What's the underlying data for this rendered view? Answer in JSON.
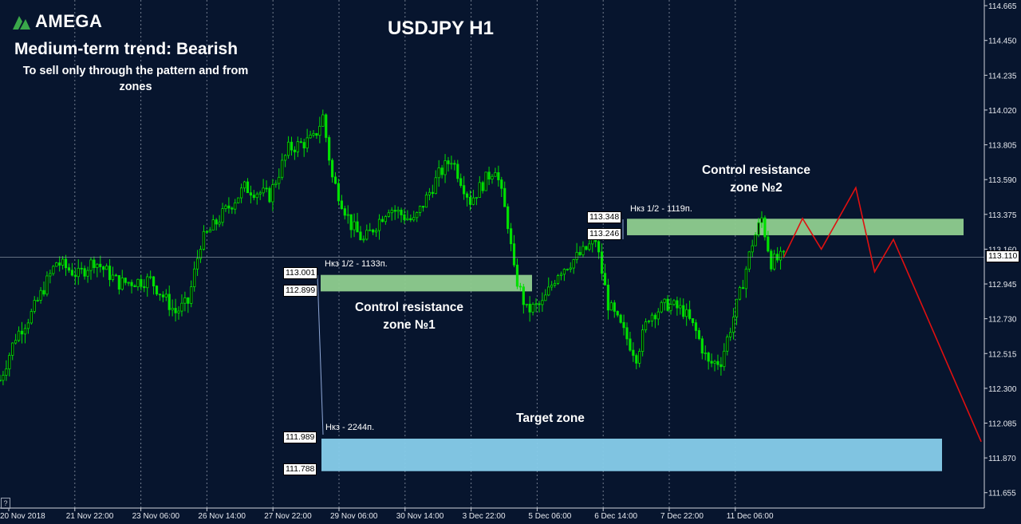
{
  "brand": {
    "name": "AMEGA"
  },
  "header": {
    "trend": "Medium-term trend: Bearish",
    "note": "To sell only through the pattern and from zones",
    "symbol": "USDJPY H1"
  },
  "zones": {
    "zone1": {
      "title_line1": "Control resistance",
      "title_line2": "zone №1",
      "sub": "Нкз 1/2 - 1133п.",
      "upper_label": "113.001",
      "lower_label": "112.899"
    },
    "zone2": {
      "title_line1": "Control resistance",
      "title_line2": "zone №2",
      "sub": "Нкз 1/2 - 1119п.",
      "upper_label": "113.348",
      "lower_label": "113.246"
    },
    "target": {
      "title": "Target zone",
      "sub": "Нкз - 2244п.",
      "upper_label": "111.989",
      "lower_label": "111.788"
    }
  },
  "current_price": {
    "label": "113.110"
  },
  "help_button": "?",
  "colors": {
    "background": "#07152e",
    "bull_candle": "#00e000",
    "resistance_zone": "#8fce8f",
    "target_zone": "#87ceeb",
    "forecast_line": "#e01010",
    "grid": "#b8c0cc"
  },
  "chart_data": {
    "type": "candlestick",
    "title": "USDJPY H1",
    "price_axis": {
      "min": 111.56,
      "max": 114.7,
      "ticks": [
        "114.665",
        "114.450",
        "114.235",
        "114.020",
        "113.805",
        "113.590",
        "113.375",
        "113.160",
        "112.945",
        "112.730",
        "112.515",
        "112.300",
        "112.085",
        "111.870",
        "111.655"
      ]
    },
    "time_axis": {
      "ticks": [
        "20 Nov 2018",
        "21 Nov 22:00",
        "23 Nov 06:00",
        "26 Nov 14:00",
        "27 Nov 22:00",
        "29 Nov 06:00",
        "30 Nov 14:00",
        "3 Dec 22:00",
        "5 Dec 06:00",
        "6 Dec 14:00",
        "7 Dec 22:00",
        "11 Dec 06:00"
      ]
    },
    "price_path": [
      {
        "bar": 0,
        "price": 112.35
      },
      {
        "bar": 5,
        "price": 112.62
      },
      {
        "bar": 10,
        "price": 112.76
      },
      {
        "bar": 18,
        "price": 113.08
      },
      {
        "bar": 25,
        "price": 113.0
      },
      {
        "bar": 30,
        "price": 113.09
      },
      {
        "bar": 38,
        "price": 112.95
      },
      {
        "bar": 48,
        "price": 112.97
      },
      {
        "bar": 56,
        "price": 112.77
      },
      {
        "bar": 60,
        "price": 112.83
      },
      {
        "bar": 64,
        "price": 113.2
      },
      {
        "bar": 70,
        "price": 113.35
      },
      {
        "bar": 78,
        "price": 113.54
      },
      {
        "bar": 86,
        "price": 113.49
      },
      {
        "bar": 92,
        "price": 113.78
      },
      {
        "bar": 100,
        "price": 113.84
      },
      {
        "bar": 103,
        "price": 113.98
      },
      {
        "bar": 106,
        "price": 113.6
      },
      {
        "bar": 112,
        "price": 113.31
      },
      {
        "bar": 116,
        "price": 113.21
      },
      {
        "bar": 124,
        "price": 113.42
      },
      {
        "bar": 132,
        "price": 113.33
      },
      {
        "bar": 140,
        "price": 113.62
      },
      {
        "bar": 144,
        "price": 113.72
      },
      {
        "bar": 150,
        "price": 113.46
      },
      {
        "bar": 158,
        "price": 113.67
      },
      {
        "bar": 162,
        "price": 113.32
      },
      {
        "bar": 164,
        "price": 113.02
      },
      {
        "bar": 168,
        "price": 112.78
      },
      {
        "bar": 173,
        "price": 112.82
      },
      {
        "bar": 178,
        "price": 113.02
      },
      {
        "bar": 186,
        "price": 113.14
      },
      {
        "bar": 190,
        "price": 113.22
      },
      {
        "bar": 194,
        "price": 112.82
      },
      {
        "bar": 198,
        "price": 112.68
      },
      {
        "bar": 203,
        "price": 112.5
      },
      {
        "bar": 207,
        "price": 112.75
      },
      {
        "bar": 213,
        "price": 112.82
      },
      {
        "bar": 218,
        "price": 112.78
      },
      {
        "bar": 222,
        "price": 112.65
      },
      {
        "bar": 226,
        "price": 112.45
      },
      {
        "bar": 230,
        "price": 112.47
      },
      {
        "bar": 236,
        "price": 112.88
      },
      {
        "bar": 240,
        "price": 113.2
      },
      {
        "bar": 243,
        "price": 113.35
      },
      {
        "bar": 246,
        "price": 113.08
      },
      {
        "bar": 250,
        "price": 113.11
      }
    ],
    "zones": [
      {
        "name": "Control resistance zone №1",
        "low": 112.899,
        "high": 113.001
      },
      {
        "name": "Control resistance zone №2",
        "low": 113.246,
        "high": 113.348
      },
      {
        "name": "Target zone",
        "low": 111.788,
        "high": 111.989
      }
    ],
    "current_price": 113.11,
    "forecast_path": [
      {
        "bar": 250,
        "price": 113.11
      },
      {
        "bar": 256,
        "price": 113.35
      },
      {
        "bar": 262,
        "price": 113.16
      },
      {
        "bar": 273,
        "price": 113.54
      },
      {
        "bar": 279,
        "price": 113.02
      },
      {
        "bar": 285,
        "price": 113.22
      },
      {
        "bar": 313,
        "price": 111.97
      }
    ],
    "grid": true
  }
}
